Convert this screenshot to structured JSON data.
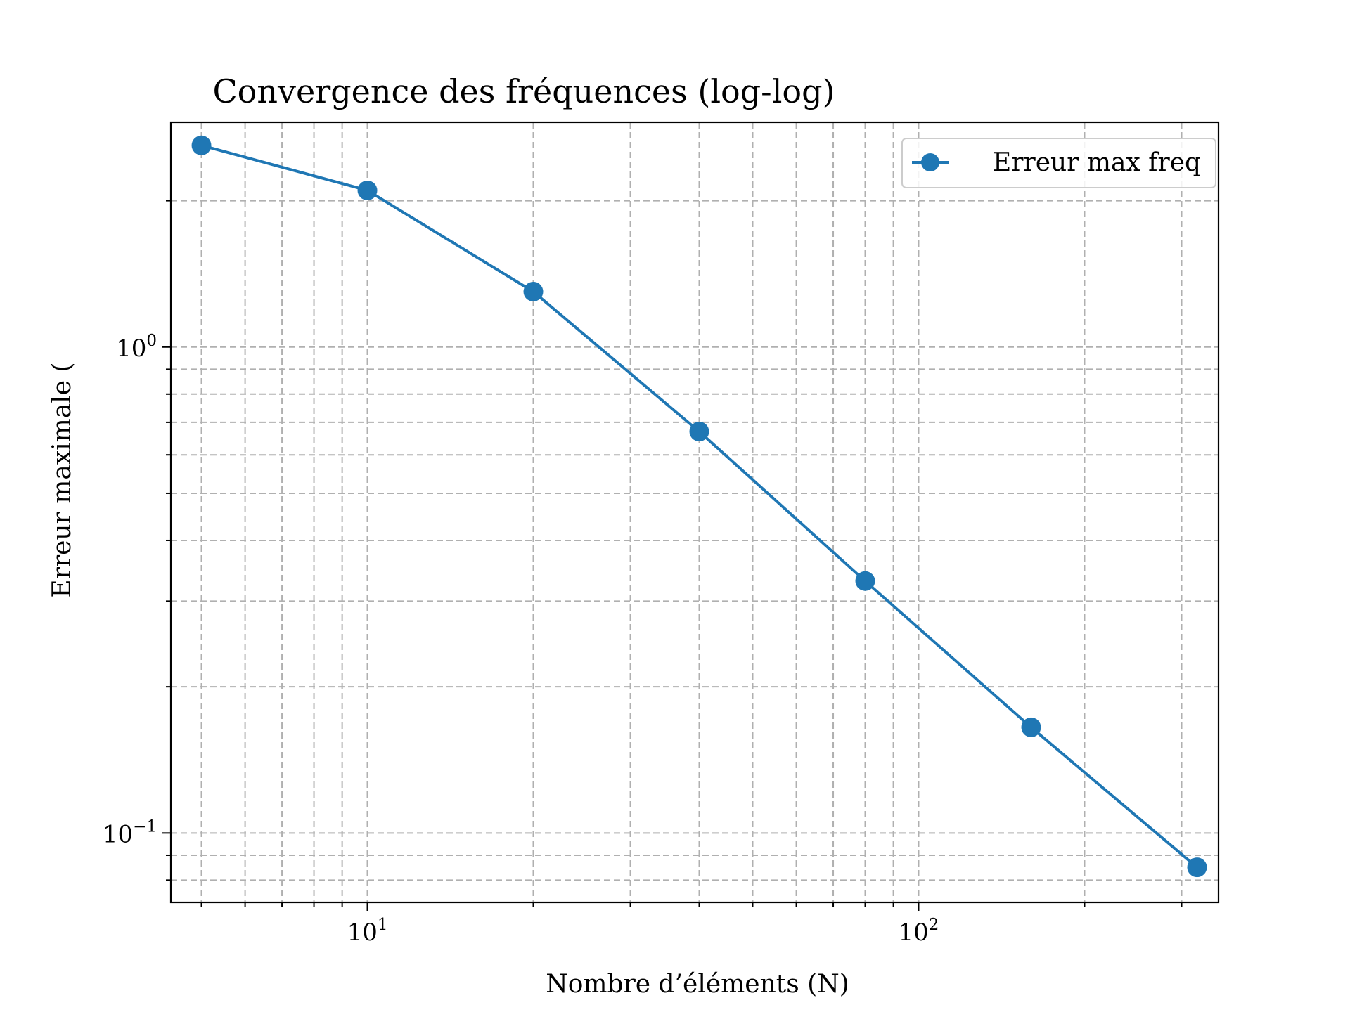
{
  "chart_data": {
    "type": "line",
    "title": "Convergence des fréquences (log-log)",
    "xlabel": "Nombre d’éléments (N)",
    "ylabel": "Erreur maximale (",
    "x_scale": "log",
    "y_scale": "log",
    "xlim": [
      4.4,
      350
    ],
    "ylim": [
      0.072,
      2.9
    ],
    "x_ticks": [
      {
        "value": 10,
        "base": "10",
        "exp": "1"
      },
      {
        "value": 100,
        "base": "10",
        "exp": "2"
      }
    ],
    "y_ticks": [
      {
        "value": 1,
        "base": "10",
        "exp": "0"
      },
      {
        "value": 0.1,
        "base": "10",
        "exp": "−1"
      }
    ],
    "grid": true,
    "grid_style": "dashed",
    "legend_position": "top-right",
    "series": [
      {
        "name": "Erreur max freq",
        "color": "#1f77b4",
        "marker": "circle",
        "x": [
          5,
          10,
          20,
          40,
          80,
          160,
          320
        ],
        "y": [
          2.6,
          2.1,
          1.3,
          0.67,
          0.33,
          0.165,
          0.085
        ]
      }
    ]
  }
}
